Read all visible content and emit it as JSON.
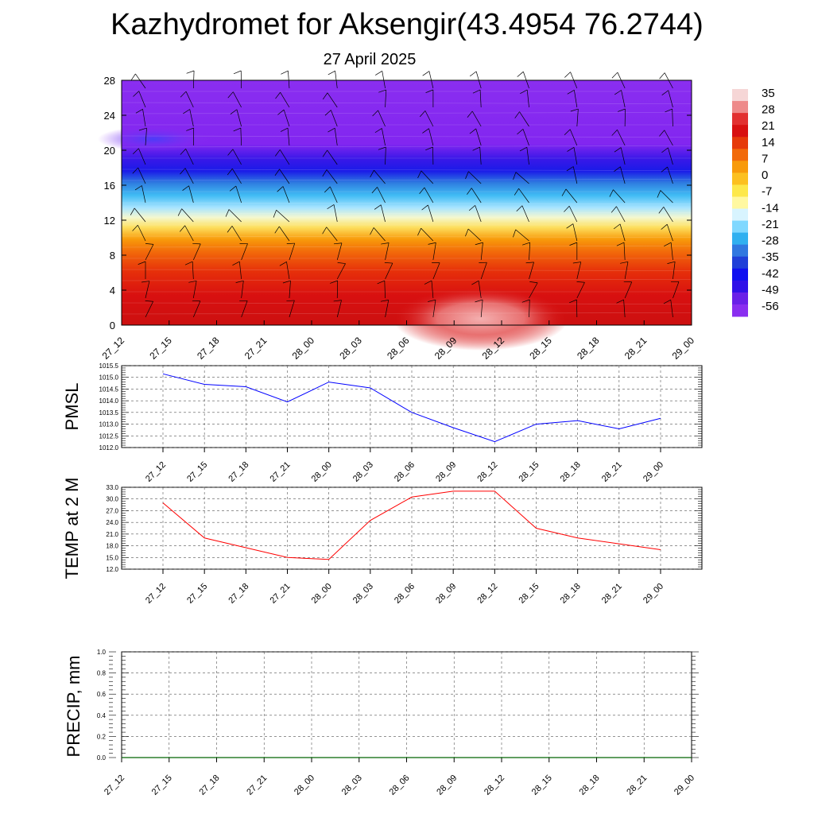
{
  "header": {
    "title": "Kazhydromet for Aksengir(43.4954 76.2744)",
    "subtitle": "27 April 2025"
  },
  "colors": {
    "pmsl_line": "#0000ff",
    "temp_line": "#ff0000",
    "precip_line": "#006400",
    "grid": "#666666",
    "colorbar": [
      "#f6d6d6",
      "#ee8a8a",
      "#e23030",
      "#d81010",
      "#e63a0a",
      "#f26a0a",
      "#f89a0a",
      "#fcc020",
      "#fde84a",
      "#fff8a0",
      "#d8f4ff",
      "#80d8ff",
      "#30b0f0",
      "#3078e0",
      "#2040d8",
      "#1010f0",
      "#3010e8",
      "#6a20e8",
      "#8a2ef0"
    ]
  },
  "chart_data": [
    {
      "type": "heatmap",
      "title": "",
      "xlabel": "",
      "ylabel": "",
      "x": [
        "27_12",
        "27_15",
        "27_18",
        "27_21",
        "28_00",
        "28_03",
        "28_06",
        "28_09",
        "28_12",
        "28_15",
        "28_18",
        "28_21",
        "29_00"
      ],
      "y_ticks": [
        0,
        4,
        8,
        12,
        16,
        20,
        24,
        28
      ],
      "ylim": [
        0,
        28
      ],
      "colorbar_labels": [
        "35",
        "28",
        "21",
        "14",
        "7",
        "0",
        "-7",
        "-14",
        "-21",
        "-28",
        "-35",
        "-42",
        "-49",
        "-56"
      ],
      "overlay": "wind barbs"
    },
    {
      "type": "line",
      "ylabel": "PMSL",
      "x": [
        "27_12",
        "27_15",
        "27_18",
        "27_21",
        "28_00",
        "28_03",
        "28_06",
        "28_09",
        "28_12",
        "28_15",
        "28_18",
        "28_21",
        "29_00"
      ],
      "y_ticks": [
        "1012.0",
        "1012.5",
        "1013.0",
        "1013.5",
        "1014.0",
        "1014.5",
        "1015.0",
        "1015.5"
      ],
      "ylim": [
        1012.0,
        1015.5
      ],
      "series": [
        {
          "values": [
            1015.15,
            1014.7,
            1014.6,
            1013.95,
            1014.8,
            1014.55,
            1013.5,
            1012.85,
            1012.25,
            1013.0,
            1013.15,
            1012.8,
            1013.25
          ]
        }
      ]
    },
    {
      "type": "line",
      "ylabel": "TEMP at 2 M",
      "x": [
        "27_12",
        "27_15",
        "27_18",
        "27_21",
        "28_00",
        "28_03",
        "28_06",
        "28_09",
        "28_12",
        "28_15",
        "28_18",
        "28_21",
        "29_00"
      ],
      "y_ticks": [
        "12.0",
        "15.0",
        "18.0",
        "21.0",
        "24.0",
        "27.0",
        "30.0",
        "33.0"
      ],
      "ylim": [
        12.0,
        33.0
      ],
      "series": [
        {
          "values": [
            29.0,
            20.0,
            17.5,
            15.0,
            14.5,
            24.5,
            30.5,
            32.0,
            32.0,
            22.5,
            20.0,
            18.5,
            17.0
          ]
        }
      ]
    },
    {
      "type": "line",
      "ylabel": "PRECIP, mm",
      "x": [
        "27_12",
        "27_15",
        "27_18",
        "27_21",
        "28_00",
        "28_03",
        "28_06",
        "28_09",
        "28_12",
        "28_15",
        "28_18",
        "28_21",
        "29_00"
      ],
      "y_ticks": [
        "0.0",
        "0.2",
        "0.4",
        "0.6",
        "0.8",
        "1.0"
      ],
      "ylim": [
        0.0,
        1.0
      ],
      "series": [
        {
          "values": [
            0,
            0,
            0,
            0,
            0,
            0,
            0,
            0,
            0,
            0,
            0,
            0,
            0
          ]
        }
      ]
    }
  ]
}
